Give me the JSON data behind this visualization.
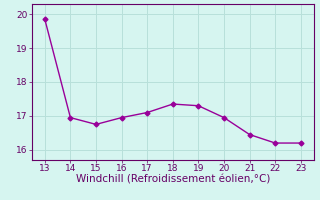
{
  "x": [
    13,
    14,
    15,
    16,
    17,
    18,
    19,
    20,
    21,
    22,
    23
  ],
  "y": [
    19.85,
    16.95,
    16.75,
    16.95,
    17.1,
    17.35,
    17.3,
    16.95,
    16.45,
    16.2,
    16.2
  ],
  "line_color": "#990099",
  "marker": "D",
  "marker_size": 2.5,
  "xlabel": "Windchill (Refroidissement éolien,°C)",
  "xlim": [
    12.5,
    23.5
  ],
  "ylim": [
    15.7,
    20.3
  ],
  "yticks": [
    16,
    17,
    18,
    19,
    20
  ],
  "xticks": [
    13,
    14,
    15,
    16,
    17,
    18,
    19,
    20,
    21,
    22,
    23
  ],
  "bg_color": "#d6f5f0",
  "grid_color": "#b8e0da",
  "tick_color": "#660066",
  "label_color": "#660066",
  "spine_color": "#660066",
  "tick_fontsize": 6.5,
  "xlabel_fontsize": 7.5
}
